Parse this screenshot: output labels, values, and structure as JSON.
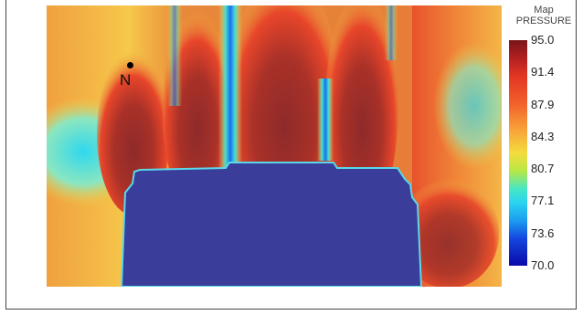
{
  "map": {
    "north_label": "N",
    "colors": {
      "high": "#8c2b2b",
      "obstacle": "#3a3d9a",
      "background": "#e9853a"
    }
  },
  "legend": {
    "title_line1": "Map",
    "title_line2": "PRESSURE",
    "ticks": [
      "95.0",
      "91.4",
      "87.9",
      "84.3",
      "80.7",
      "77.1",
      "73.6",
      "70.0"
    ]
  }
}
